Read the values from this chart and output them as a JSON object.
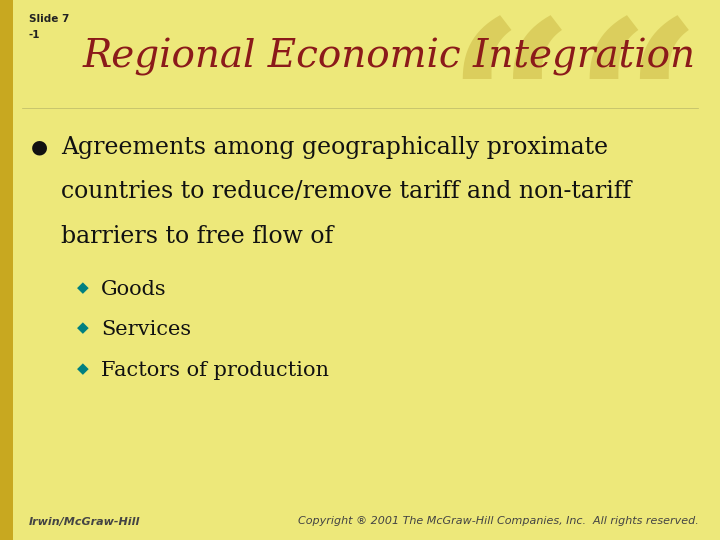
{
  "background_color": "#EDE87A",
  "watermark_color": "#D9CC5A",
  "title": "Regional Economic Integration",
  "title_color": "#8B1A1A",
  "title_fontsize": 28,
  "slide_label_line1": "Slide 7",
  "slide_label_line2": "-1",
  "slide_label_color": "#222222",
  "slide_label_fontsize": 7.5,
  "bullet_color": "#111111",
  "bullet_line1": "Agreements among geographically proximate",
  "bullet_line2": "countries to reduce/remove tariff and non-tariff",
  "bullet_line3": "barriers to free flow of",
  "bullet_fontsize": 17,
  "bullet_marker_color": "#111111",
  "sub_bullets": [
    "Goods",
    "Services",
    "Factors of production"
  ],
  "sub_bullet_fontsize": 15,
  "sub_bullet_diamond_color": "#008080",
  "footer_left": "Irwin/McGraw-Hill",
  "footer_right": "Copyright ® 2001 The McGraw-Hill Companies, Inc.  All rights reserved.",
  "footer_color": "#444444",
  "footer_fontsize": 8,
  "left_bar_color": "#C8A820",
  "left_bar_width": 0.018
}
